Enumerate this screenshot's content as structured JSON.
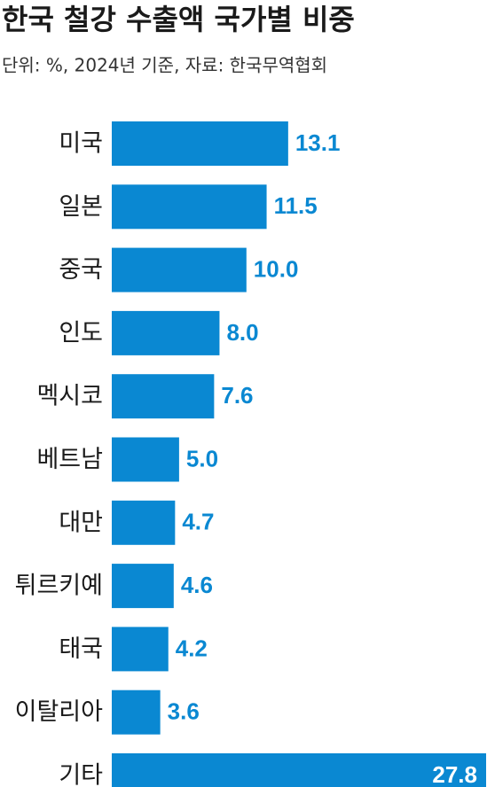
{
  "chart_data": {
    "type": "bar",
    "orientation": "horizontal",
    "title": "한국 철강 수출액 국가별 비중",
    "subtitle": "단위: %, 2024년 기준, 자료: 한국무역협회",
    "categories": [
      "미국",
      "일본",
      "중국",
      "인도",
      "멕시코",
      "베트남",
      "대만",
      "튀르키예",
      "태국",
      "이탈리아",
      "기타"
    ],
    "values": [
      13.1,
      11.5,
      10.0,
      8.0,
      7.6,
      5.0,
      4.7,
      4.6,
      4.2,
      3.6,
      27.8
    ],
    "value_labels": [
      "13.1",
      "11.5",
      "10.0",
      "8.0",
      "7.6",
      "5.0",
      "4.7",
      "4.6",
      "4.2",
      "3.6",
      "27.8"
    ],
    "color": "#0a88d2",
    "xlim": [
      0,
      27.8
    ]
  }
}
